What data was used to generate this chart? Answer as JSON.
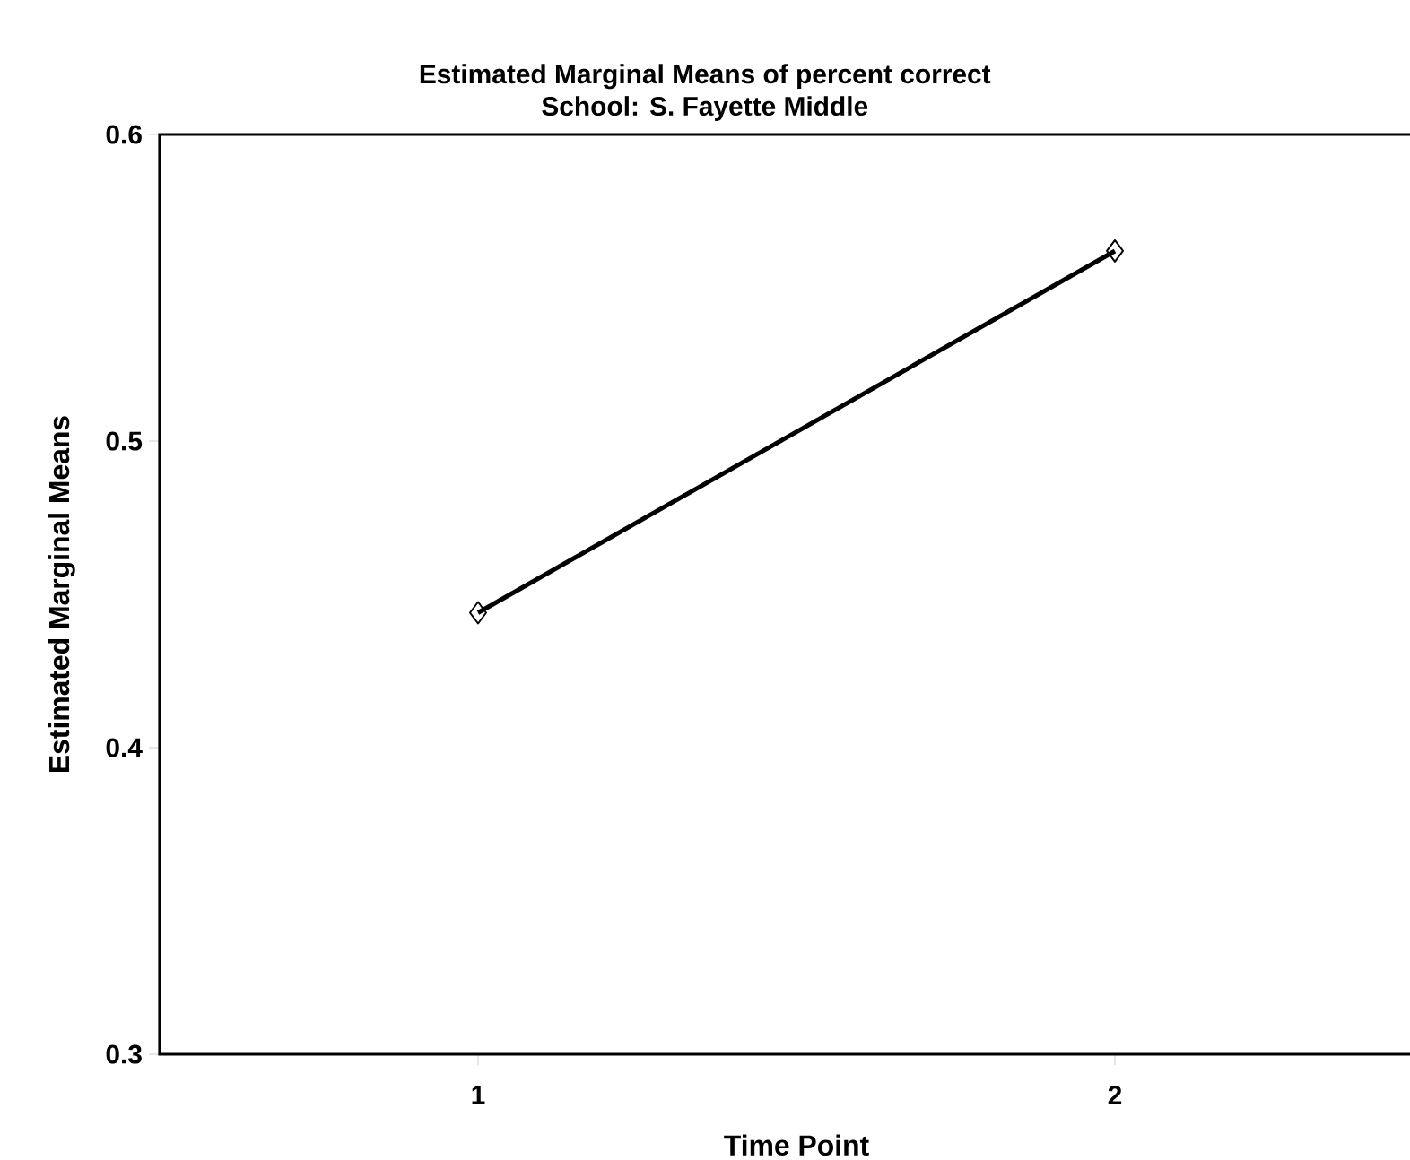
{
  "chart_data": {
    "type": "line",
    "title": "Estimated Marginal Means of percent correct",
    "subtitle": "School: S. Fayette Middle",
    "xlabel": "Time Point",
    "ylabel": "Estimated Marginal Means",
    "categories": [
      "1",
      "2"
    ],
    "series": [
      {
        "color": "#000000",
        "values": [
          0.444,
          0.562
        ]
      }
    ],
    "ylim": [
      0.3,
      0.6
    ],
    "yticks": [
      0.3,
      0.4,
      0.5,
      0.6
    ],
    "grid": false,
    "marker": "diamond",
    "line_style": "solid"
  }
}
